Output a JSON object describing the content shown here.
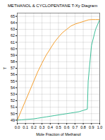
{
  "chart_data": {
    "type": "line",
    "title": "METHANOL & CYCLOPENTANE T-Xy Diagram",
    "xlabel": "Mole Fraction of Methanol",
    "ylabel": "T",
    "x": [
      0.0,
      0.05,
      0.1,
      0.15,
      0.2,
      0.25,
      0.3,
      0.35,
      0.4,
      0.45,
      0.5,
      0.55,
      0.6,
      0.65,
      0.7,
      0.75,
      0.8,
      0.85,
      0.86,
      0.9,
      0.95,
      1.0
    ],
    "series": [
      {
        "color": "#3dbf99",
        "values": [
          49.0,
          49.05,
          49.1,
          49.15,
          49.2,
          49.3,
          49.4,
          49.5,
          49.6,
          49.7,
          49.8,
          49.9,
          50.0,
          50.1,
          50.2,
          50.3,
          50.5,
          50.7,
          55.0,
          60.5,
          63.0,
          64.5
        ]
      },
      {
        "color": "#f5a030",
        "values": [
          49.0,
          50.5,
          52.0,
          53.5,
          55.0,
          56.5,
          57.8,
          59.0,
          60.0,
          61.0,
          61.8,
          62.5,
          63.0,
          63.5,
          63.8,
          64.0,
          64.2,
          64.4,
          64.45,
          64.5,
          64.5,
          64.5
        ]
      }
    ],
    "xlim": [
      0.0,
      1.0
    ],
    "ylim": [
      48.5,
      65.5
    ],
    "xticks": [
      {
        "value": 0.0,
        "label": "0.0"
      },
      0.1,
      0.2,
      0.3,
      0.4,
      0.5,
      0.6,
      0.7,
      0.8,
      0.9,
      {
        "value": 1.0,
        "label": "1.0"
      }
    ],
    "yticks": [
      49,
      50,
      51,
      52,
      53,
      54,
      55,
      56,
      57,
      58,
      59,
      60,
      61,
      62,
      63,
      64,
      65
    ],
    "grid": true
  }
}
